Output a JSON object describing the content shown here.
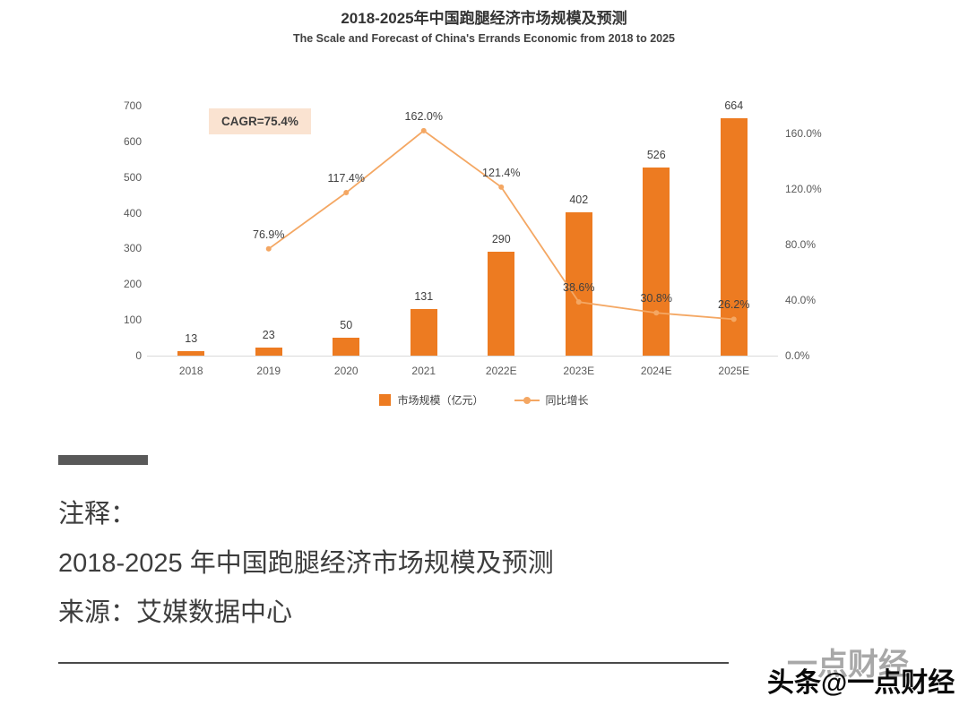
{
  "chart_data": {
    "type": "bar+line",
    "title": "2018-2025年中国跑腿经济市场规模及预测",
    "subtitle": "The Scale and Forecast of China's Errands Economic from 2018 to 2025",
    "categories": [
      "2018",
      "2019",
      "2020",
      "2021",
      "2022E",
      "2023E",
      "2024E",
      "2025E"
    ],
    "series": [
      {
        "name": "市场规模（亿元）",
        "type": "bar",
        "axis": "left",
        "color": "#ED7B21",
        "values": [
          13,
          23,
          50,
          131,
          290,
          402,
          526,
          664
        ]
      },
      {
        "name": "同比增长",
        "type": "line",
        "axis": "right",
        "color": "#F4A763",
        "values": [
          null,
          76.9,
          117.4,
          162.0,
          121.4,
          38.6,
          30.8,
          26.2
        ],
        "point_labels": [
          "",
          "76.9%",
          "117.4%",
          "162.0%",
          "121.4%",
          "38.6%",
          "30.8%",
          "26.2%"
        ]
      }
    ],
    "left_axis": {
      "min": 0,
      "max": 700,
      "step": 100,
      "tick_labels": [
        "0",
        "100",
        "200",
        "300",
        "400",
        "500",
        "600",
        "700"
      ]
    },
    "right_axis": {
      "min": 0,
      "max": 160,
      "step": 40,
      "tick_labels": [
        "0.0%",
        "40.0%",
        "80.0%",
        "120.0%",
        "160.0%"
      ]
    },
    "annotation": "CAGR=75.4%",
    "legend_position": "bottom-center",
    "grid": false
  },
  "notes": {
    "heading": "注释：",
    "caption": "2018-2025 年中国跑腿经济市场规模及预测",
    "source": "来源：艾媒数据中心"
  },
  "watermark": {
    "background_text": "一点财经",
    "foreground_text": "头条@一点财经"
  },
  "colors": {
    "bar": "#ED7B21",
    "line": "#F4A763",
    "annotation_bg": "#FAE3D1",
    "axis_text": "#595959",
    "data_label_text": "#404040",
    "divider": "#595959"
  }
}
